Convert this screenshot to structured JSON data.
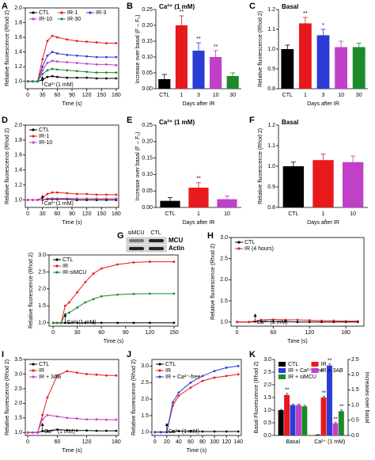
{
  "chart_data": [
    {
      "panel": "A",
      "type": "line",
      "xlabel": "Time (s)",
      "ylabel": "Relative fluorescence (Rhod 2)",
      "xlim": [
        -5,
        185
      ],
      "xticks": [
        0,
        30,
        60,
        90,
        120,
        150,
        180
      ],
      "ylim": [
        0.9,
        2.0
      ],
      "yticks": [
        {
          "value": 1,
          "label": "1.0"
        },
        1.2,
        1.4,
        1.6,
        1.8,
        {
          "value": 2,
          "label": "2.0"
        }
      ],
      "legend": "upper left",
      "annotation": {
        "text": "Ca²⁺(1 mM)",
        "x": 30
      },
      "x": [
        0,
        10,
        20,
        30,
        40,
        50,
        60,
        80,
        100,
        120,
        140,
        160,
        180
      ],
      "series": [
        {
          "name": "CTL",
          "color": "#000000",
          "values": [
            1.0,
            1.0,
            1.0,
            1.02,
            1.06,
            1.07,
            1.06,
            1.05,
            1.05,
            1.05,
            1.04,
            1.04,
            1.04
          ]
        },
        {
          "name": "IR-1",
          "color": "#e8191c",
          "values": [
            1.0,
            1.0,
            1.0,
            1.3,
            1.55,
            1.62,
            1.6,
            1.57,
            1.55,
            1.54,
            1.53,
            1.52,
            1.52
          ]
        },
        {
          "name": "IR-3",
          "color": "#2b3bd6",
          "values": [
            1.0,
            1.0,
            1.0,
            1.2,
            1.35,
            1.4,
            1.38,
            1.36,
            1.35,
            1.34,
            1.33,
            1.33,
            1.33
          ]
        },
        {
          "name": "IR-10",
          "color": "#c040c8",
          "values": [
            1.0,
            1.0,
            1.0,
            1.15,
            1.25,
            1.28,
            1.27,
            1.26,
            1.25,
            1.24,
            1.23,
            1.23,
            1.22
          ]
        },
        {
          "name": "IR-30",
          "color": "#1a8a2a",
          "values": [
            1.0,
            1.0,
            1.0,
            1.1,
            1.15,
            1.17,
            1.16,
            1.15,
            1.14,
            1.13,
            1.12,
            1.12,
            1.12
          ]
        }
      ]
    },
    {
      "panel": "B",
      "type": "bar",
      "title": "Ca²⁺ (1 mM)",
      "xlabel": "Days after IR",
      "ylabel": "Increase over basal (F – F₀)",
      "categories": [
        "CTL",
        "1",
        "3",
        "10",
        "30"
      ],
      "values": [
        0.03,
        0.2,
        0.12,
        0.1,
        0.04
      ],
      "errors": [
        0.015,
        0.03,
        0.025,
        0.02,
        0.01
      ],
      "colors": [
        "#000000",
        "#e8191c",
        "#2b3bd6",
        "#c040c8",
        "#1a8a2a"
      ],
      "sig": [
        null,
        "**",
        "**",
        "**",
        null
      ],
      "ylim": [
        0,
        0.25
      ],
      "yticks": [
        {
          "value": 0,
          "label": "0.00"
        },
        0.05,
        {
          "value": 0.1,
          "label": "0.10"
        },
        0.15,
        {
          "value": 0.2,
          "label": "0.20"
        },
        0.25
      ]
    },
    {
      "panel": "C",
      "type": "bar",
      "title": "Basal",
      "xlabel": "Days after IR",
      "ylabel": "Relative fluorescence (Rhod 2)",
      "categories": [
        "CTL",
        "1",
        "3",
        "10",
        "30"
      ],
      "values": [
        1.0,
        1.13,
        1.07,
        1.01,
        1.01
      ],
      "errors": [
        0.02,
        0.03,
        0.03,
        0.03,
        0.02
      ],
      "colors": [
        "#000000",
        "#e8191c",
        "#2b3bd6",
        "#c040c8",
        "#1a8a2a"
      ],
      "sig": [
        null,
        "**",
        "*",
        null,
        null
      ],
      "ylim": [
        0.8,
        1.2
      ],
      "yticks": [
        0.8,
        0.9,
        {
          "value": 1,
          "label": "1.0"
        },
        1.1,
        1.2
      ]
    },
    {
      "panel": "D",
      "type": "line",
      "xlabel": "Time (s)",
      "ylabel": "Relative fluorescence (Rhod 2)",
      "xlim": [
        -5,
        185
      ],
      "xticks": [
        0,
        30,
        60,
        90,
        120,
        150,
        180
      ],
      "ylim": [
        0.9,
        2.0
      ],
      "yticks": [
        {
          "value": 1,
          "label": "1.0"
        },
        1.2,
        1.4,
        1.6,
        1.8,
        {
          "value": 2,
          "label": "2.0"
        }
      ],
      "legend": "upper left",
      "annotation": {
        "text": "Ca²⁺(1 mM)",
        "x": 30
      },
      "x": [
        0,
        10,
        20,
        30,
        40,
        50,
        60,
        80,
        100,
        120,
        140,
        160,
        180
      ],
      "series": [
        {
          "name": "CTL",
          "color": "#000000",
          "values": [
            1.0,
            1.0,
            1.0,
            1.0,
            1.01,
            1.01,
            1.01,
            1.01,
            1.0,
            1.0,
            1.0,
            1.0,
            1.0
          ]
        },
        {
          "name": "IR-1",
          "color": "#e8191c",
          "values": [
            1.0,
            1.0,
            1.0,
            1.03,
            1.08,
            1.1,
            1.1,
            1.09,
            1.08,
            1.08,
            1.07,
            1.07,
            1.07
          ]
        },
        {
          "name": "IR-10",
          "color": "#c040c8",
          "values": [
            1.0,
            1.0,
            1.0,
            1.0,
            1.02,
            1.02,
            1.02,
            1.02,
            1.02,
            1.02,
            1.02,
            1.02,
            1.02
          ]
        }
      ]
    },
    {
      "panel": "E",
      "type": "bar",
      "title": "Ca²⁺ (1 mM)",
      "xlabel": "Days after IR",
      "ylabel": "Increase over basal (F – F₀)",
      "categories": [
        "CTL",
        "1",
        "10"
      ],
      "values": [
        0.02,
        0.06,
        0.025
      ],
      "errors": [
        0.01,
        0.015,
        0.01
      ],
      "colors": [
        "#000000",
        "#e8191c",
        "#c040c8"
      ],
      "sig": [
        null,
        "**",
        null
      ],
      "ylim": [
        0,
        0.25
      ],
      "yticks": [
        {
          "value": 0,
          "label": "0.00"
        },
        0.05,
        {
          "value": 0.1,
          "label": "0.10"
        },
        0.15,
        {
          "value": 0.2,
          "label": "0.20"
        },
        0.25
      ]
    },
    {
      "panel": "F",
      "type": "bar",
      "title": "Basal",
      "xlabel": "Days after IR",
      "ylabel": "Relative fluorescence (Rhod 2)",
      "categories": [
        "CTL",
        "1",
        "10"
      ],
      "values": [
        1.0,
        1.03,
        1.02
      ],
      "errors": [
        0.02,
        0.03,
        0.03
      ],
      "colors": [
        "#000000",
        "#e8191c",
        "#c040c8"
      ],
      "ylim": [
        0.8,
        1.2
      ],
      "yticks": [
        0.8,
        0.9,
        {
          "value": 1,
          "label": "1.0"
        },
        1.1,
        1.2
      ]
    },
    {
      "panel": "G",
      "type": "line",
      "xlabel": "Time (s)",
      "ylabel": "Relative fluorescence (Rhod 2)",
      "xlim": [
        -5,
        155
      ],
      "xticks": [
        0,
        30,
        60,
        90,
        120,
        150
      ],
      "ylim": [
        0.9,
        3.0
      ],
      "yticks": [
        {
          "value": 1,
          "label": "1.0"
        },
        1.5,
        {
          "value": 2,
          "label": "2.0"
        },
        2.5,
        {
          "value": 3,
          "label": "3.0"
        }
      ],
      "legend": "upper left",
      "annotation": {
        "text": "Ca²⁺(1 mM)",
        "x": 15
      },
      "inset": {
        "lanes": [
          "siMCU",
          "CTL"
        ],
        "bands": [
          "MCU",
          "Actin"
        ]
      },
      "x": [
        0,
        5,
        10,
        15,
        20,
        30,
        40,
        50,
        60,
        80,
        100,
        120,
        150
      ],
      "series": [
        {
          "name": "CTL",
          "color": "#000000",
          "values": [
            1.0,
            1.0,
            1.0,
            1.0,
            1.0,
            1.0,
            1.0,
            1.0,
            1.0,
            1.0,
            1.0,
            1.0,
            1.0
          ]
        },
        {
          "name": "IR",
          "color": "#e8191c",
          "values": [
            1.0,
            1.0,
            1.0,
            1.5,
            1.6,
            1.9,
            2.2,
            2.45,
            2.6,
            2.72,
            2.78,
            2.8,
            2.8
          ]
        },
        {
          "name": "IR-siMCU",
          "color": "#1a8a2a",
          "values": [
            1.0,
            1.0,
            1.0,
            1.25,
            1.3,
            1.45,
            1.6,
            1.7,
            1.78,
            1.83,
            1.85,
            1.86,
            1.86
          ]
        }
      ]
    },
    {
      "panel": "H",
      "type": "line",
      "xlabel": "Time (s)",
      "ylabel": "Relative fluorescence (Rhod 2)",
      "xlim": [
        -10,
        210
      ],
      "xticks": [
        0,
        60,
        120,
        180
      ],
      "ylim": [
        0.9,
        3.0
      ],
      "yticks": [
        {
          "value": 1,
          "label": "1.0"
        },
        1.5,
        {
          "value": 2,
          "label": "2.0"
        },
        2.5,
        {
          "value": 3,
          "label": "3.0"
        }
      ],
      "legend": "upper left",
      "annotation": {
        "text": "Ca²⁺ (1 mM)",
        "x": 30
      },
      "x": [
        0,
        20,
        40,
        60,
        80,
        100,
        120,
        140,
        160,
        180,
        200
      ],
      "series": [
        {
          "name": "CTL",
          "color": "#000000",
          "values": [
            1.0,
            1.0,
            1.01,
            1.01,
            1.01,
            1.0,
            1.0,
            1.0,
            1.0,
            1.0,
            1.0
          ]
        },
        {
          "name": "IR (4 hours)",
          "color": "#e8191c",
          "values": [
            1.0,
            1.0,
            1.05,
            1.06,
            1.05,
            1.05,
            1.04,
            1.03,
            1.03,
            1.02,
            1.02
          ]
        }
      ]
    },
    {
      "panel": "I",
      "type": "line",
      "xlabel": "Time (s)",
      "ylabel": "Relative fluorescence (Rhod 2)",
      "xlim": [
        -5,
        185
      ],
      "xticks": [
        0,
        60,
        120,
        180
      ],
      "ylim": [
        0.9,
        3.5
      ],
      "yticks": [
        {
          "value": 1,
          "label": "1.0"
        },
        1.5,
        {
          "value": 2,
          "label": "2.0"
        },
        2.5,
        {
          "value": 3,
          "label": "3.0"
        },
        3.5
      ],
      "legend": "upper left",
      "annotation": {
        "text": "Ca²⁺ (1 mM)",
        "x": 30
      },
      "x": [
        0,
        10,
        20,
        30,
        40,
        60,
        80,
        100,
        120,
        140,
        160,
        180
      ],
      "series": [
        {
          "name": "CTL",
          "color": "#000000",
          "values": [
            1.0,
            1.0,
            1.0,
            1.05,
            1.05,
            1.1,
            1.08,
            1.07,
            1.07,
            1.06,
            1.06,
            1.06
          ]
        },
        {
          "name": "IR",
          "color": "#e8191c",
          "values": [
            1.0,
            1.0,
            1.0,
            1.6,
            2.2,
            2.95,
            3.1,
            3.05,
            3.0,
            2.98,
            2.95,
            2.95
          ]
        },
        {
          "name": "IR + 3AB",
          "color": "#c040c8",
          "values": [
            1.0,
            1.0,
            1.0,
            1.45,
            1.6,
            1.55,
            1.5,
            1.48,
            1.45,
            1.45,
            1.44,
            1.44
          ]
        }
      ]
    },
    {
      "panel": "J",
      "type": "line",
      "xlabel": "Time (s)",
      "ylabel": "Relative fluorescence (Rhod 2)",
      "xlim": [
        -5,
        145
      ],
      "xticks": [
        0,
        20,
        40,
        60,
        80,
        100,
        120,
        140
      ],
      "ylim": [
        0.9,
        3.2
      ],
      "yticks": [
        {
          "value": 1,
          "label": "1.0"
        },
        1.5,
        {
          "value": 2,
          "label": "2.0"
        },
        2.5,
        {
          "value": 3,
          "label": "3.0"
        }
      ],
      "legend": "upper left",
      "annotation": {
        "text": "Ca²⁺ (1 mM)",
        "x": 20
      },
      "x": [
        0,
        10,
        20,
        30,
        40,
        60,
        80,
        100,
        120,
        140
      ],
      "series": [
        {
          "name": "CTL",
          "color": "#000000",
          "values": [
            1.0,
            1.0,
            1.0,
            1.02,
            1.03,
            1.03,
            1.02,
            1.02,
            1.02,
            1.02
          ]
        },
        {
          "name": "IR",
          "color": "#e8191c",
          "values": [
            1.0,
            1.0,
            1.0,
            1.8,
            2.1,
            2.35,
            2.55,
            2.65,
            2.7,
            2.75
          ]
        },
        {
          "name": "IR + Ca²⁺-free",
          "color": "#2b3bd6",
          "values": [
            1.0,
            1.0,
            1.0,
            1.9,
            2.2,
            2.5,
            2.7,
            2.85,
            2.95,
            3.0
          ]
        }
      ]
    },
    {
      "panel": "K",
      "type": "grouped_bar",
      "ylabel": "Basal Fluorescence (Rhod 2)",
      "y2label": "Increases over basal",
      "categories": [
        "Basal",
        "Ca²⁺ (1 mM)"
      ],
      "category_axis": [
        "y",
        "y2"
      ],
      "legend": "upper left",
      "ylim": [
        0,
        3.0
      ],
      "yticks": [
        {
          "value": 0,
          "label": "0.0"
        },
        0.5,
        {
          "value": 1,
          "label": "1.0"
        },
        1.5,
        {
          "value": 2,
          "label": "2.0"
        },
        2.5,
        {
          "value": 3,
          "label": "3.0"
        }
      ],
      "y2lim": [
        0,
        2.5
      ],
      "y2ticks": [
        {
          "value": 0,
          "label": "0.0"
        },
        0.5,
        {
          "value": 1,
          "label": "1.0"
        },
        1.5,
        {
          "value": 2,
          "label": "2.0"
        },
        2.5
      ],
      "series": [
        {
          "name": "CTL",
          "color": "#000000",
          "values": [
            1.0,
            0.02
          ],
          "errors": [
            0.03,
            0.01
          ],
          "sig": [
            null,
            null
          ]
        },
        {
          "name": "IR",
          "color": "#e8191c",
          "values": [
            1.6,
            1.25
          ],
          "errors": [
            0.06,
            0.04
          ],
          "sig": [
            "**",
            "**"
          ]
        },
        {
          "name": "IR + Ca²⁺-free",
          "color": "#2b3bd6",
          "values": [
            1.2,
            2.3
          ],
          "errors": [
            0.04,
            0.05
          ],
          "sig": [
            null,
            "**"
          ]
        },
        {
          "name": "IR + 3AB",
          "color": "#c040c8",
          "values": [
            1.2,
            0.4
          ],
          "errors": [
            0.04,
            0.03
          ],
          "sig": [
            null,
            "**"
          ]
        },
        {
          "name": "IR + siMCU",
          "color": "#1a8a2a",
          "values": [
            1.15,
            0.8
          ],
          "errors": [
            0.04,
            0.04
          ],
          "sig": [
            null,
            "**"
          ]
        }
      ]
    }
  ]
}
